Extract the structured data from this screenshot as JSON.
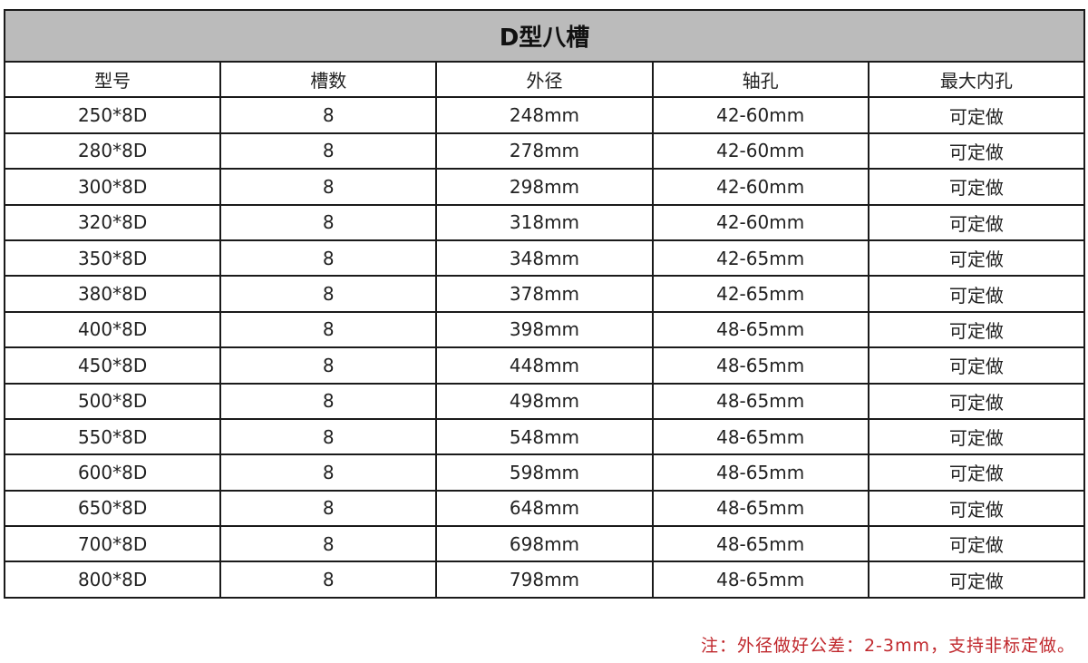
{
  "title": "D型八槽",
  "headers": [
    "型号",
    "槽数",
    "外径",
    "轴孔",
    "最大内孔"
  ],
  "rows": [
    [
      "250*8D",
      "8",
      "248mm",
      "42-60mm",
      "可定做"
    ],
    [
      "280*8D",
      "8",
      "278mm",
      "42-60mm",
      "可定做"
    ],
    [
      "300*8D",
      "8",
      "298mm",
      "42-60mm",
      "可定做"
    ],
    [
      "320*8D",
      "8",
      "318mm",
      "42-60mm",
      "可定做"
    ],
    [
      "350*8D",
      "8",
      "348mm",
      "42-65mm",
      "可定做"
    ],
    [
      "380*8D",
      "8",
      "378mm",
      "42-65mm",
      "可定做"
    ],
    [
      "400*8D",
      "8",
      "398mm",
      "48-65mm",
      "可定做"
    ],
    [
      "450*8D",
      "8",
      "448mm",
      "48-65mm",
      "可定做"
    ],
    [
      "500*8D",
      "8",
      "498mm",
      "48-65mm",
      "可定做"
    ],
    [
      "550*8D",
      "8",
      "548mm",
      "48-65mm",
      "可定做"
    ],
    [
      "600*8D",
      "8",
      "598mm",
      "48-65mm",
      "可定做"
    ],
    [
      "650*8D",
      "8",
      "648mm",
      "48-65mm",
      "可定做"
    ],
    [
      "700*8D",
      "8",
      "698mm",
      "48-65mm",
      "可定做"
    ],
    [
      "800*8D",
      "8",
      "798mm",
      "48-65mm",
      "可定做"
    ]
  ],
  "note": "注：外径做好公差：2-3mm，支持非标定做。",
  "colors": {
    "title_bg": "#bbbbbb",
    "note": "#c0282d",
    "border": "#1a1a1a"
  }
}
